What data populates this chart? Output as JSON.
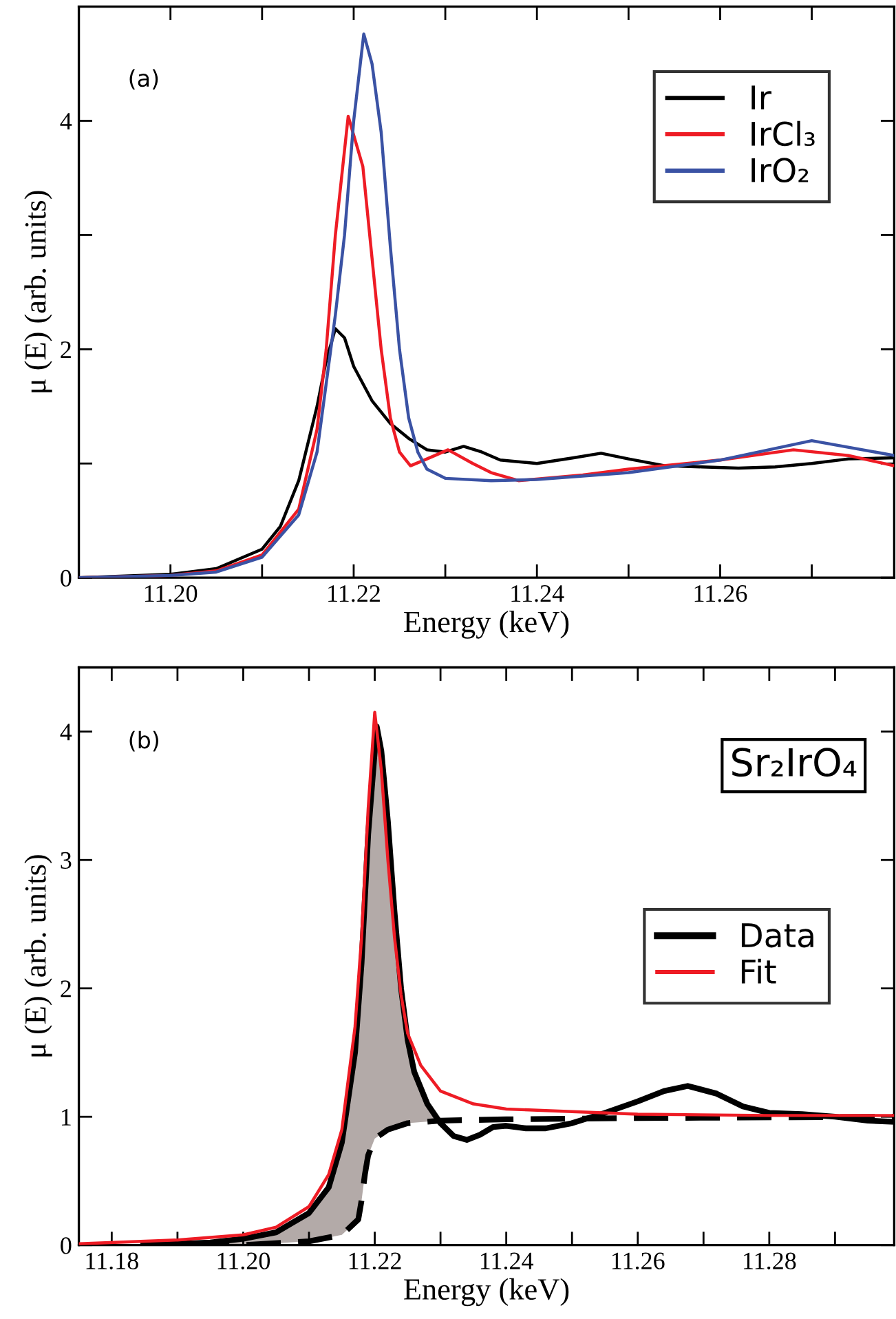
{
  "chart_data": [
    {
      "type": "line",
      "xlabel": "Energy (keV)",
      "ylabel": "μ (E) (arb. units)",
      "xlim": [
        11.19,
        11.279
      ],
      "ylim": [
        0,
        5
      ],
      "xticks": [
        {
          "value": 11.19,
          "label": null
        },
        {
          "value": 11.2,
          "label": "11.20"
        },
        {
          "value": 11.21,
          "label": null
        },
        {
          "value": 11.22,
          "label": "11.22"
        },
        {
          "value": 11.23,
          "label": null
        },
        {
          "value": 11.24,
          "label": "11.24"
        },
        {
          "value": 11.25,
          "label": null
        },
        {
          "value": 11.26,
          "label": "11.26"
        },
        {
          "value": 11.27,
          "label": null
        }
      ],
      "yticks": [
        0,
        {
          "value": 1,
          "label": null
        },
        2,
        {
          "value": 3,
          "label": null
        },
        4,
        {
          "value": 5,
          "label": null
        }
      ],
      "grid": false,
      "legend": "top right",
      "annotations": [
        "(a)"
      ],
      "series": [
        {
          "name": "Ir",
          "color": "#000000",
          "x": [
            11.19,
            11.2,
            11.205,
            11.21,
            11.212,
            11.214,
            11.216,
            11.217,
            11.218,
            11.219,
            11.22,
            11.222,
            11.224,
            11.226,
            11.228,
            11.23,
            11.232,
            11.234,
            11.236,
            11.24,
            11.244,
            11.247,
            11.25,
            11.254,
            11.258,
            11.262,
            11.266,
            11.27,
            11.274,
            11.279
          ],
          "values": [
            0.0,
            0.03,
            0.08,
            0.25,
            0.45,
            0.85,
            1.5,
            1.9,
            2.18,
            2.1,
            1.85,
            1.55,
            1.35,
            1.22,
            1.12,
            1.1,
            1.15,
            1.1,
            1.03,
            1.0,
            1.05,
            1.09,
            1.04,
            0.98,
            0.97,
            0.96,
            0.97,
            1.0,
            1.04,
            1.05
          ]
        },
        {
          "name": "IrCl₃",
          "color": "#ee1c25",
          "x": [
            11.19,
            11.2,
            11.205,
            11.21,
            11.214,
            11.216,
            11.217,
            11.218,
            11.2194,
            11.221,
            11.222,
            11.223,
            11.224,
            11.225,
            11.2262,
            11.228,
            11.2303,
            11.233,
            11.235,
            11.238,
            11.245,
            11.25,
            11.26,
            11.268,
            11.274,
            11.279
          ],
          "values": [
            0.0,
            0.02,
            0.06,
            0.2,
            0.6,
            1.3,
            2.0,
            3.0,
            4.04,
            3.6,
            2.8,
            2.0,
            1.4,
            1.1,
            0.98,
            1.04,
            1.12,
            1.0,
            0.92,
            0.85,
            0.9,
            0.95,
            1.03,
            1.12,
            1.07,
            0.98
          ]
        },
        {
          "name": "IrO₂",
          "color": "#3a52a4",
          "x": [
            11.19,
            11.2,
            11.205,
            11.21,
            11.214,
            11.216,
            11.218,
            11.219,
            11.22,
            11.2211,
            11.222,
            11.223,
            11.224,
            11.225,
            11.226,
            11.227,
            11.228,
            11.23,
            11.235,
            11.24,
            11.25,
            11.26,
            11.27,
            11.279
          ],
          "values": [
            0.0,
            0.02,
            0.05,
            0.18,
            0.55,
            1.1,
            2.3,
            3.0,
            4.0,
            4.76,
            4.5,
            3.9,
            2.9,
            2.0,
            1.4,
            1.1,
            0.95,
            0.87,
            0.85,
            0.86,
            0.92,
            1.03,
            1.2,
            1.07
          ]
        }
      ]
    },
    {
      "type": "line",
      "xlabel": "Energy (keV)",
      "ylabel": "μ (E) (arb. units)",
      "xlim": [
        11.175,
        11.299
      ],
      "ylim": [
        0,
        4.5
      ],
      "xticks": [
        {
          "value": 11.18,
          "label": "11.18"
        },
        {
          "value": 11.19,
          "label": null
        },
        {
          "value": 11.2,
          "label": "11.20"
        },
        {
          "value": 11.21,
          "label": null
        },
        {
          "value": 11.22,
          "label": "11.22"
        },
        {
          "value": 11.23,
          "label": null
        },
        {
          "value": 11.24,
          "label": "11.24"
        },
        {
          "value": 11.25,
          "label": null
        },
        {
          "value": 11.26,
          "label": "11.26"
        },
        {
          "value": 11.27,
          "label": null
        },
        {
          "value": 11.28,
          "label": "11.28"
        },
        {
          "value": 11.29,
          "label": null
        }
      ],
      "yticks": [
        0,
        1,
        2,
        3,
        4
      ],
      "grid": false,
      "legend": "right",
      "annotations": [
        "(b)",
        "Sr₂IrO₄"
      ],
      "series": [
        {
          "color": "#000000",
          "line_style": "dashed",
          "x": [
            11.1848,
            11.2,
            11.21,
            11.215,
            11.2175,
            11.218,
            11.2185,
            11.219,
            11.22,
            11.222,
            11.225,
            11.23,
            11.24,
            11.26,
            11.299
          ],
          "values": [
            0.0,
            0.0,
            0.03,
            0.08,
            0.2,
            0.35,
            0.55,
            0.7,
            0.83,
            0.9,
            0.95,
            0.97,
            0.98,
            0.99,
            1.0
          ]
        },
        {
          "name": "Data",
          "color": "#000000",
          "x": [
            11.1848,
            11.195,
            11.2,
            11.205,
            11.21,
            11.213,
            11.215,
            11.217,
            11.218,
            11.219,
            11.2203,
            11.221,
            11.222,
            11.223,
            11.224,
            11.225,
            11.226,
            11.228,
            11.23,
            11.232,
            11.234,
            11.236,
            11.238,
            11.24,
            11.243,
            11.246,
            11.25,
            11.255,
            11.26,
            11.264,
            11.2676,
            11.272,
            11.276,
            11.28,
            11.285,
            11.29,
            11.295,
            11.299
          ],
          "values": [
            0.0,
            0.02,
            0.05,
            0.1,
            0.25,
            0.45,
            0.8,
            1.5,
            2.2,
            3.2,
            4.04,
            3.85,
            3.3,
            2.6,
            2.0,
            1.6,
            1.35,
            1.1,
            0.95,
            0.85,
            0.82,
            0.86,
            0.92,
            0.93,
            0.91,
            0.91,
            0.95,
            1.03,
            1.12,
            1.2,
            1.24,
            1.18,
            1.08,
            1.03,
            1.02,
            1.0,
            0.97,
            0.96
          ]
        },
        {
          "name": "Fit",
          "color": "#ee1c25",
          "x": [
            11.175,
            11.19,
            11.2,
            11.205,
            11.21,
            11.213,
            11.215,
            11.217,
            11.218,
            11.219,
            11.22,
            11.221,
            11.222,
            11.223,
            11.224,
            11.225,
            11.227,
            11.23,
            11.235,
            11.24,
            11.25,
            11.26,
            11.28,
            11.299
          ],
          "values": [
            0.01,
            0.04,
            0.08,
            0.14,
            0.3,
            0.55,
            0.9,
            1.7,
            2.4,
            3.4,
            4.15,
            3.7,
            3.0,
            2.4,
            1.95,
            1.65,
            1.4,
            1.2,
            1.1,
            1.06,
            1.04,
            1.02,
            1.01,
            1.01
          ]
        }
      ]
    }
  ]
}
